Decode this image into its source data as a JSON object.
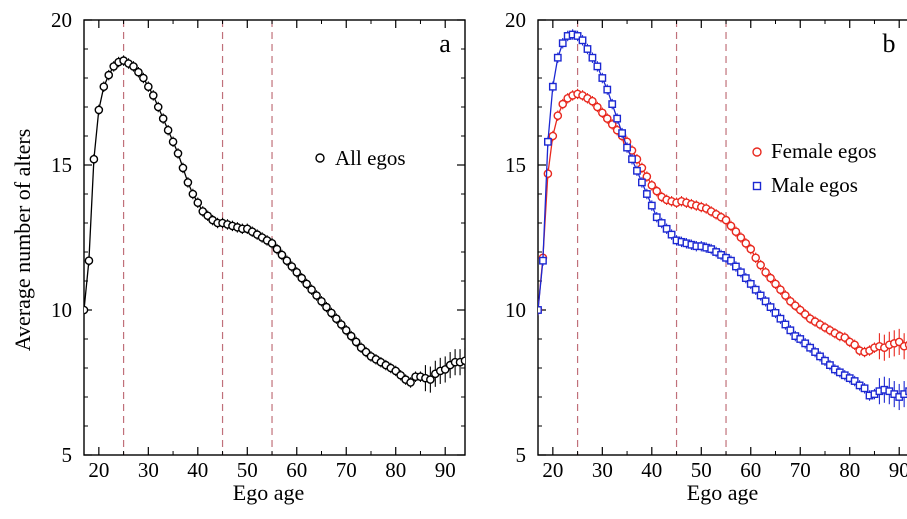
{
  "figure": {
    "ylabel": "Average number of alters",
    "colors": {
      "all": "#000000",
      "female": "#e8281e",
      "male": "#1c28d2",
      "vline": "#c0707a"
    }
  },
  "chart_data": [
    {
      "type": "scatter",
      "panel": "a",
      "title": "",
      "xlabel": "Ego age",
      "ylabel": "Average number of alters",
      "xlim": [
        17,
        94
      ],
      "ylim": [
        5,
        20
      ],
      "xticks": [
        20,
        30,
        40,
        50,
        60,
        70,
        80,
        90
      ],
      "yticks": [
        5,
        10,
        15,
        20
      ],
      "vlines": [
        25,
        45,
        55
      ],
      "legend": "right",
      "series": [
        {
          "name": "All egos",
          "marker": "circle",
          "x": [
            17,
            18,
            19,
            20,
            21,
            22,
            23,
            24,
            25,
            26,
            27,
            28,
            29,
            30,
            31,
            32,
            33,
            34,
            35,
            36,
            37,
            38,
            39,
            40,
            41,
            42,
            43,
            44,
            45,
            46,
            47,
            48,
            49,
            50,
            51,
            52,
            53,
            54,
            55,
            56,
            57,
            58,
            59,
            60,
            61,
            62,
            63,
            64,
            65,
            66,
            67,
            68,
            69,
            70,
            71,
            72,
            73,
            74,
            75,
            76,
            77,
            78,
            79,
            80,
            81,
            82,
            83,
            84,
            85,
            86,
            87,
            88,
            89,
            90,
            91,
            92,
            93,
            94
          ],
          "y": [
            10.0,
            11.7,
            15.2,
            16.9,
            17.7,
            18.1,
            18.4,
            18.55,
            18.6,
            18.5,
            18.4,
            18.2,
            18.0,
            17.7,
            17.4,
            17.0,
            16.6,
            16.2,
            15.8,
            15.4,
            14.9,
            14.4,
            14.0,
            13.7,
            13.4,
            13.25,
            13.1,
            13.0,
            13.0,
            12.95,
            12.9,
            12.85,
            12.8,
            12.8,
            12.7,
            12.6,
            12.5,
            12.4,
            12.3,
            12.1,
            11.9,
            11.7,
            11.5,
            11.3,
            11.1,
            10.9,
            10.7,
            10.5,
            10.3,
            10.1,
            9.9,
            9.7,
            9.5,
            9.3,
            9.1,
            8.9,
            8.7,
            8.55,
            8.4,
            8.3,
            8.2,
            8.1,
            8.0,
            7.9,
            7.75,
            7.6,
            7.5,
            7.7,
            7.7,
            7.65,
            7.6,
            7.8,
            7.9,
            7.95,
            8.1,
            8.2,
            8.2,
            8.25
          ]
        }
      ]
    },
    {
      "type": "scatter",
      "panel": "b",
      "title": "",
      "xlabel": "Ego age",
      "ylabel": "",
      "xlim": [
        17,
        94
      ],
      "ylim": [
        5,
        20
      ],
      "xticks": [
        20,
        30,
        40,
        50,
        60,
        70,
        80,
        90
      ],
      "yticks": [
        5,
        10,
        15,
        20
      ],
      "vlines": [
        25,
        45,
        55
      ],
      "legend": "right",
      "series": [
        {
          "name": "Female egos",
          "marker": "circle",
          "color": "#e8281e",
          "x": [
            17,
            18,
            19,
            20,
            21,
            22,
            23,
            24,
            25,
            26,
            27,
            28,
            29,
            30,
            31,
            32,
            33,
            34,
            35,
            36,
            37,
            38,
            39,
            40,
            41,
            42,
            43,
            44,
            45,
            46,
            47,
            48,
            49,
            50,
            51,
            52,
            53,
            54,
            55,
            56,
            57,
            58,
            59,
            60,
            61,
            62,
            63,
            64,
            65,
            66,
            67,
            68,
            69,
            70,
            71,
            72,
            73,
            74,
            75,
            76,
            77,
            78,
            79,
            80,
            81,
            82,
            83,
            84,
            85,
            86,
            87,
            88,
            89,
            90,
            91,
            92,
            93,
            94
          ],
          "y": [
            10.0,
            11.8,
            14.7,
            16.0,
            16.7,
            17.1,
            17.3,
            17.4,
            17.45,
            17.4,
            17.3,
            17.2,
            17.0,
            16.8,
            16.6,
            16.4,
            16.2,
            16.0,
            15.8,
            15.5,
            15.2,
            14.9,
            14.6,
            14.3,
            14.1,
            13.9,
            13.8,
            13.75,
            13.7,
            13.75,
            13.7,
            13.65,
            13.6,
            13.55,
            13.5,
            13.4,
            13.3,
            13.2,
            13.1,
            12.9,
            12.7,
            12.5,
            12.3,
            12.1,
            11.8,
            11.55,
            11.3,
            11.1,
            10.9,
            10.7,
            10.5,
            10.3,
            10.15,
            10.0,
            9.85,
            9.7,
            9.6,
            9.5,
            9.4,
            9.3,
            9.2,
            9.1,
            9.05,
            8.9,
            8.8,
            8.6,
            8.55,
            8.6,
            8.7,
            8.75,
            8.7,
            8.8,
            8.85,
            8.9,
            8.75,
            8.8,
            8.95,
            8.8
          ]
        },
        {
          "name": "Male egos",
          "marker": "square",
          "color": "#1c28d2",
          "x": [
            17,
            18,
            19,
            20,
            21,
            22,
            23,
            24,
            25,
            26,
            27,
            28,
            29,
            30,
            31,
            32,
            33,
            34,
            35,
            36,
            37,
            38,
            39,
            40,
            41,
            42,
            43,
            44,
            45,
            46,
            47,
            48,
            49,
            50,
            51,
            52,
            53,
            54,
            55,
            56,
            57,
            58,
            59,
            60,
            61,
            62,
            63,
            64,
            65,
            66,
            67,
            68,
            69,
            70,
            71,
            72,
            73,
            74,
            75,
            76,
            77,
            78,
            79,
            80,
            81,
            82,
            83,
            84,
            85,
            86,
            87,
            88,
            89,
            90,
            91,
            92,
            93,
            94
          ],
          "y": [
            10.0,
            11.7,
            15.8,
            17.7,
            18.7,
            19.2,
            19.45,
            19.5,
            19.45,
            19.3,
            19.0,
            18.7,
            18.4,
            18.0,
            17.6,
            17.1,
            16.6,
            16.1,
            15.6,
            15.2,
            14.8,
            14.4,
            14.0,
            13.6,
            13.2,
            13.0,
            12.8,
            12.6,
            12.4,
            12.35,
            12.3,
            12.25,
            12.2,
            12.2,
            12.15,
            12.1,
            12.0,
            11.9,
            11.8,
            11.7,
            11.5,
            11.3,
            11.1,
            10.9,
            10.7,
            10.5,
            10.3,
            10.1,
            9.9,
            9.7,
            9.5,
            9.3,
            9.1,
            9.0,
            8.85,
            8.7,
            8.55,
            8.4,
            8.25,
            8.1,
            7.95,
            7.85,
            7.75,
            7.65,
            7.55,
            7.4,
            7.3,
            7.05,
            7.1,
            7.2,
            7.25,
            7.2,
            7.1,
            7.0,
            7.1,
            7.2,
            7.2,
            7.25
          ]
        }
      ]
    }
  ]
}
